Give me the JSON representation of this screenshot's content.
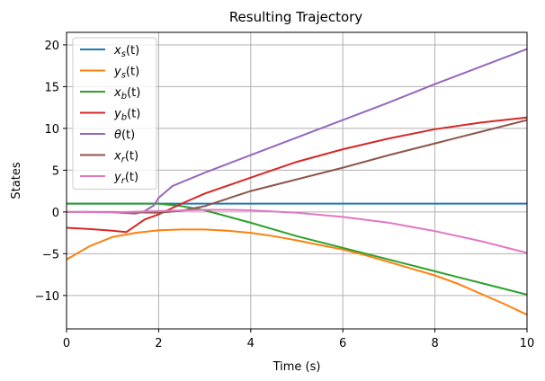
{
  "chart_data": {
    "type": "line",
    "title": "Resulting Trajectory",
    "xlabel": "Time (s)",
    "ylabel": "States",
    "xlim": [
      0,
      10
    ],
    "ylim": [
      -14,
      21.5
    ],
    "xticks": [
      0,
      2,
      4,
      6,
      8,
      10
    ],
    "xtick_labels": [
      "0",
      "2",
      "4",
      "6",
      "8",
      "10"
    ],
    "yticks": [
      -10,
      -5,
      0,
      5,
      10,
      15,
      20
    ],
    "ytick_labels": [
      "−10",
      "−5",
      "0",
      "5",
      "10",
      "15",
      "20"
    ],
    "grid": true,
    "legend_position": "top-left",
    "series": [
      {
        "name": "x",
        "sub": "s",
        "suffix": "(t)",
        "color": "#1f77b4",
        "x": [
          0,
          1,
          2,
          3,
          4,
          5,
          6,
          7,
          8,
          9,
          10
        ],
        "y": [
          1,
          1,
          1,
          1,
          1,
          1,
          1,
          1,
          1,
          1,
          1
        ]
      },
      {
        "name": "y",
        "sub": "s",
        "suffix": "(t)",
        "color": "#ff7f0e",
        "x": [
          0,
          0.5,
          1,
          1.5,
          2,
          2.5,
          3,
          3.5,
          4,
          4.5,
          5,
          5.5,
          6,
          6.5,
          7,
          7.5,
          8,
          8.5,
          9,
          9.5,
          10
        ],
        "y": [
          -5.7,
          -4.1,
          -3.0,
          -2.5,
          -2.2,
          -2.1,
          -2.1,
          -2.25,
          -2.5,
          -2.9,
          -3.4,
          -3.95,
          -4.5,
          -5.2,
          -6.0,
          -6.8,
          -7.6,
          -8.6,
          -9.8,
          -11.0,
          -12.3
        ]
      },
      {
        "name": "x",
        "sub": "b",
        "suffix": "(t)",
        "color": "#2ca02c",
        "x": [
          0,
          1,
          2,
          2.5,
          3,
          4,
          5,
          6,
          7,
          8,
          9,
          10
        ],
        "y": [
          1.0,
          1.0,
          1.0,
          0.7,
          0.2,
          -1.3,
          -2.9,
          -4.3,
          -5.7,
          -7.1,
          -8.5,
          -9.9
        ]
      },
      {
        "name": "y",
        "sub": "b",
        "suffix": "(t)",
        "color": "#d62728",
        "x": [
          0,
          0.5,
          1,
          1.3,
          1.7,
          2,
          2.5,
          3,
          4,
          5,
          6,
          7,
          8,
          9,
          10
        ],
        "y": [
          -1.9,
          -2.05,
          -2.25,
          -2.4,
          -0.9,
          -0.3,
          1.0,
          2.2,
          4.1,
          6.0,
          7.5,
          8.8,
          9.9,
          10.7,
          11.3
        ]
      },
      {
        "name": "θ",
        "sub": "",
        "suffix": "(t)",
        "color": "#9467bd",
        "x": [
          0,
          0.5,
          1,
          1.5,
          1.7,
          1.9,
          2,
          2.3,
          3,
          4,
          5,
          6,
          7,
          8,
          9,
          10
        ],
        "y": [
          0,
          0,
          -0.05,
          -0.2,
          0.1,
          0.8,
          1.7,
          3.1,
          4.7,
          6.8,
          8.9,
          11.0,
          13.1,
          15.3,
          17.4,
          19.5
        ]
      },
      {
        "name": "x",
        "sub": "r",
        "suffix": "(t)",
        "color": "#8c564b",
        "x": [
          0,
          1,
          2,
          2.5,
          3,
          4,
          5,
          6,
          7,
          8,
          9,
          10
        ],
        "y": [
          0,
          0,
          -0.1,
          0.15,
          0.7,
          2.5,
          3.9,
          5.3,
          6.8,
          8.2,
          9.6,
          11.0
        ]
      },
      {
        "name": "y",
        "sub": "r",
        "suffix": "(t)",
        "color": "#e377c2",
        "x": [
          0,
          1,
          2,
          3,
          3.5,
          4,
          5,
          6,
          7,
          8,
          9,
          10
        ],
        "y": [
          0,
          -0.05,
          0.1,
          0.25,
          0.25,
          0.2,
          -0.1,
          -0.6,
          -1.3,
          -2.3,
          -3.5,
          -4.9
        ]
      }
    ]
  }
}
